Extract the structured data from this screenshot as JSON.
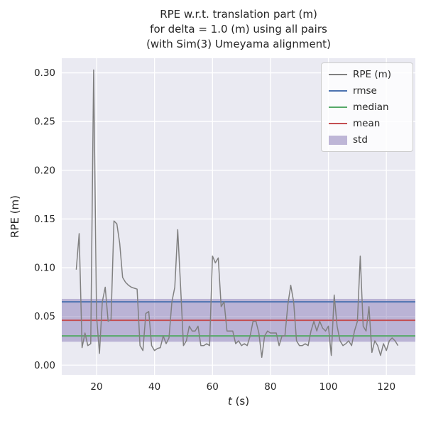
{
  "title": {
    "line1": "RPE w.r.t. translation part (m)",
    "line2": "for delta = 1.0 (m) using all pairs",
    "line3": "(with Sim(3) Umeyama alignment)"
  },
  "chart_data": {
    "type": "line",
    "title": "RPE w.r.t. translation part (m) for delta = 1.0 (m) using all pairs (with Sim(3) Umeyama alignment)",
    "xlabel": "t (s)",
    "ylabel": "RPE (m)",
    "xlim": [
      8,
      130
    ],
    "ylim": [
      -0.01,
      0.315
    ],
    "xticks": [
      20,
      40,
      60,
      80,
      100,
      120
    ],
    "yticks": [
      0.0,
      0.05,
      0.1,
      0.15,
      0.2,
      0.25,
      0.3
    ],
    "grid": true,
    "legend_position": "top-right",
    "colors": {
      "plot_bg": "#eaeaf2",
      "grid": "#ffffff",
      "text": "#262626"
    },
    "series": [
      {
        "name": "RPE (m)",
        "color": "#808080",
        "x": [
          13,
          14,
          15,
          16,
          17,
          18,
          19,
          20,
          21,
          22,
          23,
          24,
          25,
          26,
          27,
          28,
          29,
          30,
          31,
          32,
          33,
          34,
          35,
          36,
          37,
          38,
          39,
          40,
          41,
          42,
          43,
          44,
          45,
          46,
          47,
          48,
          49,
          50,
          51,
          52,
          53,
          54,
          55,
          56,
          57,
          58,
          59,
          60,
          61,
          62,
          63,
          64,
          65,
          66,
          67,
          68,
          69,
          70,
          71,
          72,
          73,
          74,
          75,
          76,
          77,
          78,
          79,
          80,
          81,
          82,
          83,
          84,
          85,
          86,
          87,
          88,
          89,
          90,
          91,
          92,
          93,
          94,
          95,
          96,
          97,
          98,
          99,
          100,
          101,
          102,
          103,
          104,
          105,
          106,
          107,
          108,
          109,
          110,
          111,
          112,
          113,
          114,
          115,
          116,
          117,
          118,
          119,
          120,
          121,
          122,
          123,
          124
        ],
        "y": [
          0.098,
          0.135,
          0.018,
          0.033,
          0.02,
          0.022,
          0.303,
          0.05,
          0.012,
          0.065,
          0.08,
          0.045,
          0.047,
          0.148,
          0.145,
          0.125,
          0.09,
          0.085,
          0.082,
          0.08,
          0.079,
          0.078,
          0.02,
          0.015,
          0.053,
          0.055,
          0.02,
          0.015,
          0.017,
          0.018,
          0.03,
          0.022,
          0.028,
          0.065,
          0.08,
          0.139,
          0.08,
          0.02,
          0.025,
          0.04,
          0.035,
          0.035,
          0.04,
          0.02,
          0.02,
          0.022,
          0.02,
          0.112,
          0.105,
          0.11,
          0.06,
          0.065,
          0.035,
          0.035,
          0.035,
          0.022,
          0.025,
          0.02,
          0.022,
          0.02,
          0.03,
          0.045,
          0.045,
          0.033,
          0.008,
          0.03,
          0.035,
          0.033,
          0.033,
          0.033,
          0.02,
          0.03,
          0.03,
          0.062,
          0.082,
          0.065,
          0.025,
          0.02,
          0.02,
          0.022,
          0.02,
          0.035,
          0.045,
          0.035,
          0.045,
          0.038,
          0.035,
          0.04,
          0.01,
          0.072,
          0.04,
          0.025,
          0.02,
          0.022,
          0.025,
          0.02,
          0.035,
          0.045,
          0.112,
          0.04,
          0.035,
          0.06,
          0.013,
          0.025,
          0.02,
          0.01,
          0.022,
          0.015,
          0.025,
          0.028,
          0.025,
          0.02
        ]
      }
    ],
    "stats": {
      "rmse": {
        "label": "rmse",
        "value": 0.065,
        "color": "#4c72b0"
      },
      "median": {
        "label": "median",
        "value": 0.03,
        "color": "#55a868"
      },
      "mean": {
        "label": "mean",
        "value": 0.046,
        "color": "#c44e52"
      },
      "std": {
        "label": "std",
        "band": [
          0.024,
          0.068
        ],
        "color": "#8172b2",
        "alpha": 0.45
      }
    }
  },
  "legend": {
    "items": [
      {
        "label": "RPE (m)",
        "color": "#808080",
        "type": "line"
      },
      {
        "label": "rmse",
        "color": "#4c72b0",
        "type": "line"
      },
      {
        "label": "median",
        "color": "#55a868",
        "type": "line"
      },
      {
        "label": "mean",
        "color": "#c44e52",
        "type": "line"
      },
      {
        "label": "std",
        "color": "#8172b2",
        "type": "patch"
      }
    ]
  }
}
